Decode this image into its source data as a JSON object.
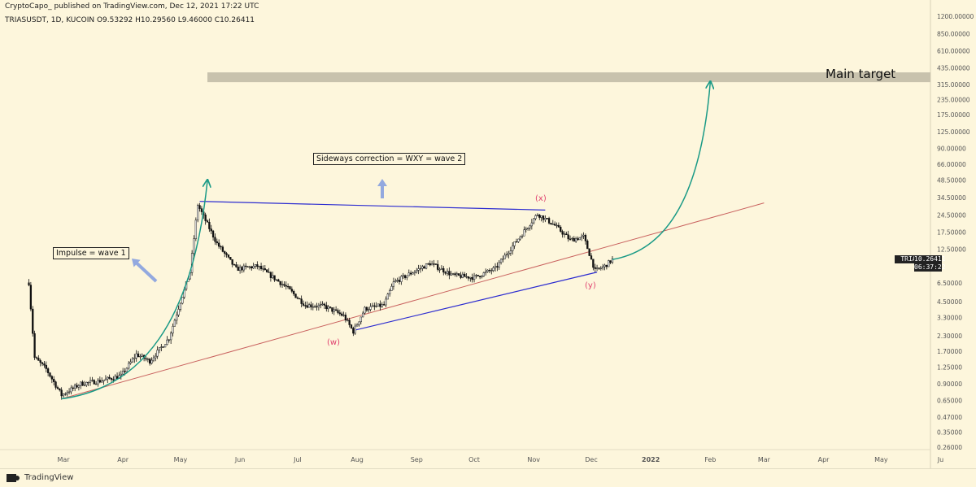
{
  "header": {
    "published": "CryptoCapo_ published on TradingView.com, Dec 12, 2021 17:22 UTC",
    "symbol_line": "TRIASUSDT, 1D, KUCOIN  O9.53292  H10.29560  L9.46000  C10.26411"
  },
  "footer": {
    "brand": "TradingView"
  },
  "price_tag": {
    "symbol": "TRIASUSDT",
    "price": "10.26411",
    "countdown": "06:37:22"
  },
  "annotations": {
    "main_target": "Main target",
    "sideways": "Sideways correction = WXY = wave 2",
    "impulse": "Impulse = wave 1",
    "x_label": "(x)",
    "w_label": "(w)",
    "y_label": "(y)"
  },
  "colors": {
    "background": "#fdf6dc",
    "candle": "#111111",
    "trendline_blue": "#2b2bd0",
    "support_red": "#c9625f",
    "projection_teal": "#1a9a86",
    "target_band": "#c8c2ad",
    "arrow_blue": "#6f8fe0",
    "wave_label": "#e0426f"
  },
  "chart_data": {
    "type": "candlestick",
    "scale": "log",
    "x_ticks": [
      "Mar",
      "Apr",
      "May",
      "Jun",
      "Jul",
      "Aug",
      "Sep",
      "Oct",
      "Nov",
      "Dec",
      "2022",
      "Feb",
      "Mar",
      "Apr",
      "May",
      "Ju"
    ],
    "y_ticks": [
      "1200.00000",
      "850.00000",
      "610.00000",
      "435.00000",
      "315.00000",
      "235.00000",
      "175.00000",
      "125.00000",
      "90.00000",
      "66.00000",
      "48.50000",
      "34.50000",
      "24.50000",
      "17.50000",
      "12.50000",
      "6.50000",
      "4.50000",
      "3.30000",
      "2.30000",
      "1.70000",
      "1.25000",
      "0.90000",
      "0.65000",
      "0.47000",
      "0.35000",
      "0.26000"
    ],
    "ylim": [
      0.26,
      1200
    ],
    "price_path": [
      [
        "2021-02-11",
        6.5
      ],
      [
        "2021-02-14",
        1.5
      ],
      [
        "2021-02-20",
        1.2
      ],
      [
        "2021-02-28",
        0.72
      ],
      [
        "2021-03-10",
        0.9
      ],
      [
        "2021-03-20",
        0.95
      ],
      [
        "2021-03-31",
        1.05
      ],
      [
        "2021-04-08",
        1.6
      ],
      [
        "2021-04-15",
        1.4
      ],
      [
        "2021-04-25",
        2.2
      ],
      [
        "2021-05-01",
        4.5
      ],
      [
        "2021-05-06",
        8.0
      ],
      [
        "2021-05-10",
        30.0
      ],
      [
        "2021-05-14",
        22.0
      ],
      [
        "2021-05-20",
        14.0
      ],
      [
        "2021-05-30",
        8.5
      ],
      [
        "2021-06-10",
        9.0
      ],
      [
        "2021-06-25",
        6.0
      ],
      [
        "2021-07-05",
        4.2
      ],
      [
        "2021-07-15",
        4.1
      ],
      [
        "2021-07-25",
        3.4
      ],
      [
        "2021-07-30",
        2.5
      ],
      [
        "2021-08-05",
        3.9
      ],
      [
        "2021-08-15",
        4.2
      ],
      [
        "2021-08-20",
        6.5
      ],
      [
        "2021-08-30",
        8.0
      ],
      [
        "2021-09-08",
        9.5
      ],
      [
        "2021-09-20",
        7.5
      ],
      [
        "2021-10-01",
        7.2
      ],
      [
        "2021-10-12",
        8.6
      ],
      [
        "2021-10-22",
        14.0
      ],
      [
        "2021-11-03",
        25.0
      ],
      [
        "2021-11-12",
        20.0
      ],
      [
        "2021-11-20",
        15.0
      ],
      [
        "2021-11-27",
        16.0
      ],
      [
        "2021-12-03",
        8.2
      ],
      [
        "2021-12-08",
        9.0
      ],
      [
        "2021-12-12",
        10.26
      ]
    ],
    "trendline_top": {
      "from": [
        "2021-05-11",
        32.0
      ],
      "to": [
        "2021-11-07",
        27.0
      ]
    },
    "trendline_bottom": {
      "from": [
        "2021-07-30",
        2.55
      ],
      "to": [
        "2021-12-04",
        8.0
      ]
    },
    "support_line": {
      "from": [
        "2021-02-28",
        0.67
      ],
      "to": [
        "2022-03-01",
        31.0
      ]
    },
    "target_band": {
      "from": "2021-05-15",
      "low": 330,
      "high": 400
    },
    "projection_curves": [
      {
        "from": [
          "2021-02-28",
          0.67
        ],
        "to": [
          "2021-05-15",
          48.0
        ]
      },
      {
        "from": [
          "2021-12-12",
          10.26
        ],
        "to": [
          "2022-02-01",
          330
        ]
      }
    ]
  }
}
